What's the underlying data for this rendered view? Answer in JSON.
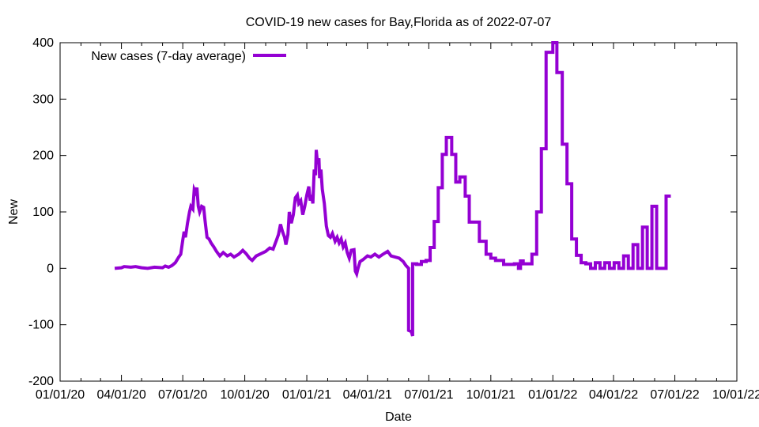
{
  "chart_data": {
    "type": "line",
    "title": "COVID-19 new cases for Bay,Florida as of 2022-07-07",
    "xlabel": "Date",
    "ylabel": "New",
    "xlim": [
      "2020-01-01",
      "2022-10-01"
    ],
    "ylim": [
      -200,
      400
    ],
    "x_ticks": [
      "01/01/20",
      "04/01/20",
      "07/01/20",
      "10/01/20",
      "01/01/21",
      "04/01/21",
      "07/01/21",
      "10/01/21",
      "01/01/22",
      "04/01/22",
      "07/01/22",
      "10/01/22"
    ],
    "y_ticks": [
      "-200",
      "-100",
      "0",
      "100",
      "200",
      "300",
      "400"
    ],
    "grid": false,
    "legend_position": "top-left",
    "series": [
      {
        "name": "New cases (7-day average)",
        "color": "#9400d3",
        "points": [
          [
            "2020-03-22",
            0
          ],
          [
            "2020-04-01",
            1
          ],
          [
            "2020-04-05",
            3
          ],
          [
            "2020-04-15",
            2
          ],
          [
            "2020-04-22",
            3
          ],
          [
            "2020-05-01",
            1
          ],
          [
            "2020-05-10",
            0
          ],
          [
            "2020-05-20",
            2
          ],
          [
            "2020-06-01",
            1
          ],
          [
            "2020-06-05",
            4
          ],
          [
            "2020-06-10",
            2
          ],
          [
            "2020-06-15",
            5
          ],
          [
            "2020-06-20",
            10
          ],
          [
            "2020-06-25",
            20
          ],
          [
            "2020-06-28",
            25
          ],
          [
            "2020-07-01",
            50
          ],
          [
            "2020-07-03",
            65
          ],
          [
            "2020-07-05",
            55
          ],
          [
            "2020-07-08",
            80
          ],
          [
            "2020-07-11",
            100
          ],
          [
            "2020-07-13",
            110
          ],
          [
            "2020-07-16",
            105
          ],
          [
            "2020-07-18",
            140
          ],
          [
            "2020-07-20",
            135
          ],
          [
            "2020-07-22",
            143
          ],
          [
            "2020-07-24",
            110
          ],
          [
            "2020-07-26",
            100
          ],
          [
            "2020-07-29",
            110
          ],
          [
            "2020-08-01",
            108
          ],
          [
            "2020-08-03",
            85
          ],
          [
            "2020-08-06",
            55
          ],
          [
            "2020-08-09",
            52
          ],
          [
            "2020-08-12",
            45
          ],
          [
            "2020-08-16",
            38
          ],
          [
            "2020-08-20",
            30
          ],
          [
            "2020-08-25",
            22
          ],
          [
            "2020-08-30",
            28
          ],
          [
            "2020-09-05",
            22
          ],
          [
            "2020-09-10",
            25
          ],
          [
            "2020-09-15",
            20
          ],
          [
            "2020-09-22",
            25
          ],
          [
            "2020-09-28",
            32
          ],
          [
            "2020-10-03",
            26
          ],
          [
            "2020-10-08",
            18
          ],
          [
            "2020-10-12",
            14
          ],
          [
            "2020-10-18",
            22
          ],
          [
            "2020-10-25",
            26
          ],
          [
            "2020-11-01",
            30
          ],
          [
            "2020-11-07",
            36
          ],
          [
            "2020-11-12",
            34
          ],
          [
            "2020-11-17",
            50
          ],
          [
            "2020-11-20",
            60
          ],
          [
            "2020-11-23",
            78
          ],
          [
            "2020-11-26",
            65
          ],
          [
            "2020-11-29",
            55
          ],
          [
            "2020-12-01",
            42
          ],
          [
            "2020-12-04",
            60
          ],
          [
            "2020-12-06",
            100
          ],
          [
            "2020-12-09",
            80
          ],
          [
            "2020-12-12",
            95
          ],
          [
            "2020-12-15",
            125
          ],
          [
            "2020-12-18",
            130
          ],
          [
            "2020-12-20",
            115
          ],
          [
            "2020-12-23",
            120
          ],
          [
            "2020-12-26",
            95
          ],
          [
            "2020-12-29",
            110
          ],
          [
            "2021-01-01",
            130
          ],
          [
            "2021-01-04",
            145
          ],
          [
            "2021-01-06",
            120
          ],
          [
            "2021-01-08",
            130
          ],
          [
            "2021-01-10",
            115
          ],
          [
            "2021-01-12",
            175
          ],
          [
            "2021-01-14",
            165
          ],
          [
            "2021-01-15",
            210
          ],
          [
            "2021-01-17",
            185
          ],
          [
            "2021-01-19",
            195
          ],
          [
            "2021-01-20",
            160
          ],
          [
            "2021-01-22",
            175
          ],
          [
            "2021-01-24",
            140
          ],
          [
            "2021-01-27",
            115
          ],
          [
            "2021-01-30",
            75
          ],
          [
            "2021-02-02",
            58
          ],
          [
            "2021-02-05",
            55
          ],
          [
            "2021-02-08",
            62
          ],
          [
            "2021-02-12",
            48
          ],
          [
            "2021-02-15",
            55
          ],
          [
            "2021-02-18",
            45
          ],
          [
            "2021-02-21",
            52
          ],
          [
            "2021-02-24",
            38
          ],
          [
            "2021-02-27",
            45
          ],
          [
            "2021-03-02",
            28
          ],
          [
            "2021-03-05",
            18
          ],
          [
            "2021-03-08",
            32
          ],
          [
            "2021-03-12",
            33
          ],
          [
            "2021-03-14",
            -5
          ],
          [
            "2021-03-16",
            -10
          ],
          [
            "2021-03-18",
            0
          ],
          [
            "2021-03-21",
            12
          ],
          [
            "2021-03-25",
            15
          ],
          [
            "2021-04-01",
            22
          ],
          [
            "2021-04-06",
            20
          ],
          [
            "2021-04-12",
            25
          ],
          [
            "2021-04-18",
            20
          ],
          [
            "2021-04-24",
            25
          ],
          [
            "2021-05-01",
            30
          ],
          [
            "2021-05-06",
            22
          ],
          [
            "2021-05-12",
            20
          ],
          [
            "2021-05-18",
            18
          ],
          [
            "2021-05-24",
            12
          ],
          [
            "2021-05-28",
            5
          ],
          [
            "2021-06-01",
            0
          ],
          [
            "2021-06-01",
            -110
          ],
          [
            "2021-06-05",
            -112
          ],
          [
            "2021-06-07",
            -120
          ],
          [
            "2021-06-07",
            8
          ],
          [
            "2021-06-13",
            8
          ],
          [
            "2021-06-13",
            7
          ],
          [
            "2021-06-20",
            7
          ],
          [
            "2021-06-20",
            12
          ],
          [
            "2021-06-27",
            12
          ],
          [
            "2021-06-27",
            14
          ],
          [
            "2021-07-03",
            14
          ],
          [
            "2021-07-03",
            37
          ],
          [
            "2021-07-09",
            37
          ],
          [
            "2021-07-09",
            83
          ],
          [
            "2021-07-15",
            83
          ],
          [
            "2021-07-15",
            143
          ],
          [
            "2021-07-21",
            143
          ],
          [
            "2021-07-21",
            202
          ],
          [
            "2021-07-27",
            202
          ],
          [
            "2021-07-27",
            232
          ],
          [
            "2021-08-04",
            232
          ],
          [
            "2021-08-04",
            202
          ],
          [
            "2021-08-10",
            202
          ],
          [
            "2021-08-10",
            153
          ],
          [
            "2021-08-16",
            153
          ],
          [
            "2021-08-16",
            162
          ],
          [
            "2021-08-24",
            162
          ],
          [
            "2021-08-24",
            128
          ],
          [
            "2021-08-30",
            128
          ],
          [
            "2021-08-30",
            82
          ],
          [
            "2021-09-14",
            82
          ],
          [
            "2021-09-14",
            48
          ],
          [
            "2021-09-24",
            48
          ],
          [
            "2021-09-24",
            25
          ],
          [
            "2021-10-01",
            25
          ],
          [
            "2021-10-01",
            18
          ],
          [
            "2021-10-08",
            18
          ],
          [
            "2021-10-08",
            14
          ],
          [
            "2021-10-20",
            14
          ],
          [
            "2021-10-20",
            7
          ],
          [
            "2021-11-05",
            7
          ],
          [
            "2021-11-05",
            8
          ],
          [
            "2021-11-11",
            8
          ],
          [
            "2021-11-11",
            0
          ],
          [
            "2021-11-14",
            0
          ],
          [
            "2021-11-14",
            13
          ],
          [
            "2021-11-18",
            13
          ],
          [
            "2021-11-18",
            8
          ],
          [
            "2021-12-01",
            8
          ],
          [
            "2021-12-01",
            25
          ],
          [
            "2021-12-08",
            25
          ],
          [
            "2021-12-08",
            100
          ],
          [
            "2021-12-15",
            100
          ],
          [
            "2021-12-15",
            212
          ],
          [
            "2021-12-22",
            212
          ],
          [
            "2021-12-22",
            383
          ],
          [
            "2022-01-01",
            383
          ],
          [
            "2022-01-01",
            400
          ],
          [
            "2022-01-07",
            400
          ],
          [
            "2022-01-07",
            347
          ],
          [
            "2022-01-15",
            347
          ],
          [
            "2022-01-15",
            220
          ],
          [
            "2022-01-22",
            220
          ],
          [
            "2022-01-22",
            150
          ],
          [
            "2022-01-29",
            150
          ],
          [
            "2022-01-29",
            52
          ],
          [
            "2022-02-05",
            52
          ],
          [
            "2022-02-05",
            23
          ],
          [
            "2022-02-12",
            23
          ],
          [
            "2022-02-12",
            10
          ],
          [
            "2022-02-19",
            10
          ],
          [
            "2022-02-19",
            8
          ],
          [
            "2022-02-26",
            8
          ],
          [
            "2022-02-26",
            0
          ],
          [
            "2022-03-05",
            0
          ],
          [
            "2022-03-05",
            10
          ],
          [
            "2022-03-12",
            10
          ],
          [
            "2022-03-12",
            0
          ],
          [
            "2022-03-19",
            0
          ],
          [
            "2022-03-19",
            10
          ],
          [
            "2022-03-26",
            10
          ],
          [
            "2022-03-26",
            0
          ],
          [
            "2022-04-02",
            0
          ],
          [
            "2022-04-02",
            10
          ],
          [
            "2022-04-09",
            10
          ],
          [
            "2022-04-09",
            0
          ],
          [
            "2022-04-16",
            0
          ],
          [
            "2022-04-16",
            22
          ],
          [
            "2022-04-23",
            22
          ],
          [
            "2022-04-23",
            0
          ],
          [
            "2022-04-30",
            0
          ],
          [
            "2022-04-30",
            42
          ],
          [
            "2022-05-07",
            42
          ],
          [
            "2022-05-07",
            0
          ],
          [
            "2022-05-14",
            0
          ],
          [
            "2022-05-14",
            73
          ],
          [
            "2022-05-21",
            73
          ],
          [
            "2022-05-21",
            0
          ],
          [
            "2022-05-28",
            0
          ],
          [
            "2022-05-28",
            110
          ],
          [
            "2022-06-04",
            110
          ],
          [
            "2022-06-04",
            0
          ],
          [
            "2022-06-18",
            0
          ],
          [
            "2022-06-18",
            128
          ],
          [
            "2022-06-25",
            128
          ]
        ]
      }
    ]
  }
}
